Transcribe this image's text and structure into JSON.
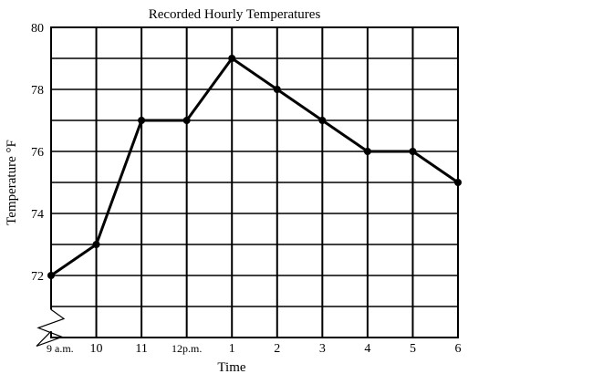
{
  "chart_data": {
    "type": "line",
    "title": "Recorded Hourly Temperatures",
    "xlabel": "Time",
    "ylabel": "Temperature °F",
    "categories": [
      "9 a.m.",
      "10",
      "11",
      "12p.m.",
      "1",
      "2",
      "3",
      "4",
      "5",
      "6"
    ],
    "values": [
      72,
      73,
      77,
      77,
      79,
      78,
      77,
      76,
      76,
      75
    ],
    "ylim": [
      70,
      80
    ],
    "yticks": [
      72,
      74,
      76,
      78,
      80
    ],
    "y_axis_break": true,
    "grid": true,
    "markers": true,
    "color": "#000000"
  }
}
